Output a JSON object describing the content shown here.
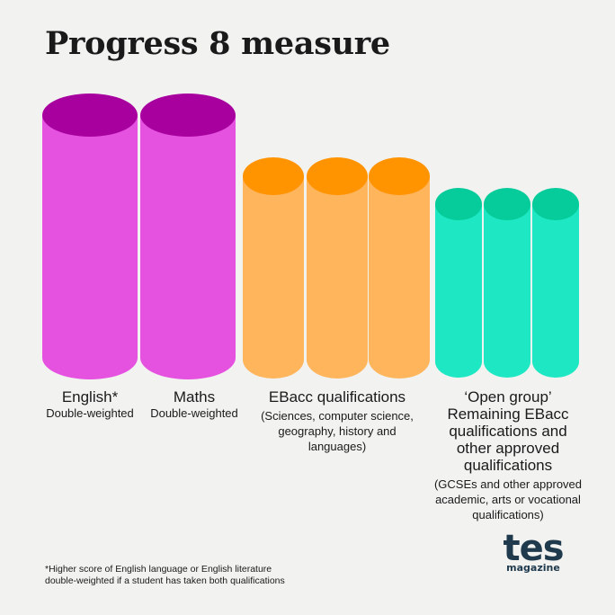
{
  "title": "Progress 8 measure",
  "groups": [
    {
      "heading": [
        "English*"
      ],
      "details": [
        "Double-weighted"
      ]
    },
    {
      "heading": [
        "Maths"
      ],
      "details": [
        "Double-weighted"
      ]
    },
    {
      "heading": [
        "EBacc qualifications"
      ],
      "details": [
        "(Sciences, computer science,",
        "geography, history and",
        "languages)"
      ]
    },
    {
      "heading": [
        "‘Open group’",
        "Remaining EBacc",
        "qualifications and",
        "other approved",
        "qualifications"
      ],
      "details": [
        "(GCSEs and other approved",
        "academic, arts or vocational",
        "qualifications)"
      ]
    }
  ],
  "colors": {
    "english_maths": {
      "body": "#e552e0",
      "top": "#a8009e"
    },
    "ebacc": {
      "body": "#ffb55c",
      "top": "#ff9300"
    },
    "open": {
      "body": "#1de8c3",
      "top": "#05cc9a"
    }
  },
  "footnote": [
    "*Higher score of English language or English literature",
    "double-weighted if a student has taken both qualifications"
  ],
  "logo": {
    "name": "tes",
    "sub": "magazine"
  }
}
